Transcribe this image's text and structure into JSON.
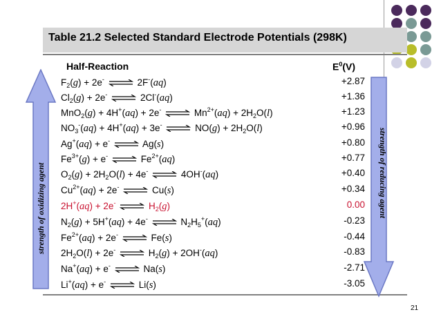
{
  "title": "Table 21.2   Selected Standard Electrode Potentials (298K)",
  "headers": {
    "reaction": "Half-Reaction",
    "potential_base": "E",
    "potential_sup": "0",
    "potential_unit": "(V)"
  },
  "rows": [
    {
      "potential": "+2.87"
    },
    {
      "potential": "+1.36"
    },
    {
      "potential": "+1.23"
    },
    {
      "potential": "+0.96"
    },
    {
      "potential": "+0.80"
    },
    {
      "potential": "+0.77"
    },
    {
      "potential": "+0.40"
    },
    {
      "potential": "+0.34"
    },
    {
      "potential": "0.00"
    },
    {
      "potential": "-0.23"
    },
    {
      "potential": "-0.44"
    },
    {
      "potential": "-0.83"
    },
    {
      "potential": "-2.71"
    },
    {
      "potential": "-3.05"
    }
  ],
  "left_label": "strength of oxidizing agent",
  "right_label": "strength of reducing agent",
  "page_number": "21",
  "colors": {
    "arrow_fill": "#a3aeea",
    "arrow_stroke": "#6b78c4",
    "highlight_row": "#c8102e",
    "dot_purple": "#4b2a5c",
    "dot_teal": "#7a9a95",
    "dot_olive": "#b8bd2a",
    "dot_lilac": "#d2d2e6"
  }
}
